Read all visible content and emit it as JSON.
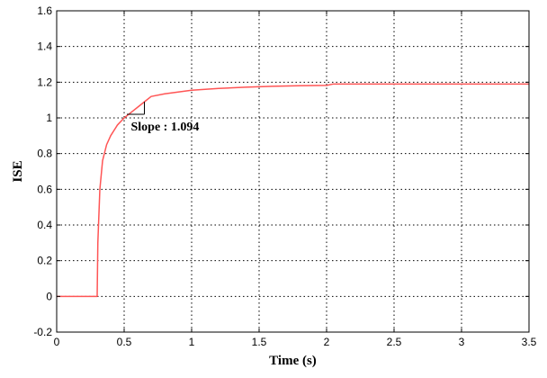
{
  "chart_data": {
    "type": "line",
    "title": "",
    "xlabel": "Time (s)",
    "ylabel": "ISE",
    "xlim": [
      0,
      3.5
    ],
    "ylim": [
      -0.2,
      1.6
    ],
    "grid": true,
    "x_ticks": [
      0,
      0.5,
      1,
      1.5,
      2,
      2.5,
      3,
      3.5
    ],
    "x_tick_labels": [
      "0",
      "0.5",
      "1",
      "1.5",
      "2",
      "2.5",
      "3",
      "3.5"
    ],
    "y_ticks": [
      -0.2,
      0,
      0.2,
      0.4,
      0.6,
      0.8,
      1,
      1.2,
      1.4,
      1.6
    ],
    "y_tick_labels": [
      "-0.2",
      "0",
      "0.2",
      "0.4",
      "0.6",
      "0.8",
      "1",
      "1.2",
      "1.4",
      "1.6"
    ],
    "series": [
      {
        "color": "#ff5555",
        "x": [
          0,
          0.3,
          0.305,
          0.32,
          0.34,
          0.37,
          0.4,
          0.45,
          0.5,
          0.55,
          0.6,
          0.65,
          0.7,
          0.8,
          0.9,
          1.0,
          1.2,
          1.4,
          1.6,
          1.8,
          2.0,
          2.05,
          2.5,
          3.0,
          3.5
        ],
        "y": [
          0,
          0,
          0.3,
          0.6,
          0.76,
          0.85,
          0.9,
          0.96,
          1.0,
          1.03,
          1.06,
          1.09,
          1.12,
          1.135,
          1.145,
          1.155,
          1.165,
          1.172,
          1.177,
          1.18,
          1.182,
          1.19,
          1.19,
          1.19,
          1.19
        ]
      }
    ],
    "annotations": [
      {
        "text": "Slope : 1.094",
        "x": 0.55,
        "y": 0.93
      }
    ],
    "slope_marker": {
      "x0": 0.52,
      "x1": 0.65,
      "y_low": 1.02,
      "y_high": 1.09
    }
  }
}
